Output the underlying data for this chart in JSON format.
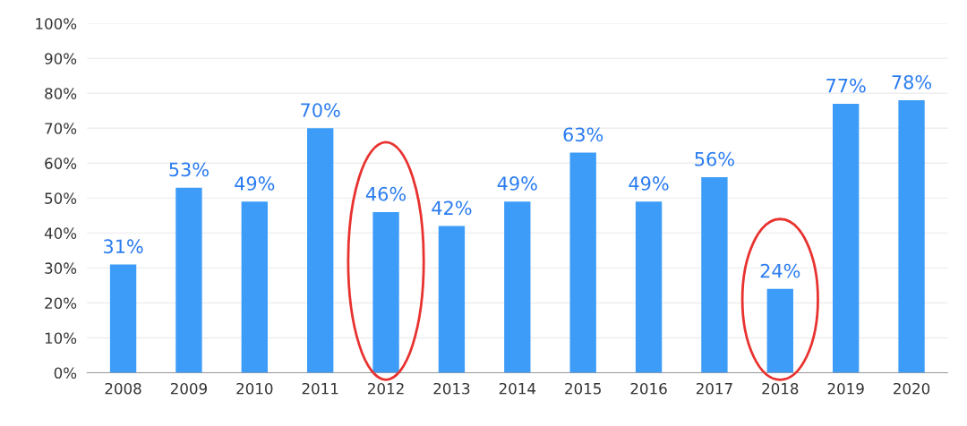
{
  "chart_data": {
    "type": "bar",
    "categories": [
      "2008",
      "2009",
      "2010",
      "2011",
      "2012",
      "2013",
      "2014",
      "2015",
      "2016",
      "2017",
      "2018",
      "2019",
      "2020"
    ],
    "values": [
      31,
      53,
      49,
      70,
      46,
      42,
      49,
      63,
      49,
      56,
      24,
      77,
      78
    ],
    "value_labels": [
      "31%",
      "53%",
      "49%",
      "70%",
      "46%",
      "42%",
      "49%",
      "63%",
      "49%",
      "56%",
      "24%",
      "77%",
      "78%"
    ],
    "color": "#3d9cf8",
    "ylim": [
      0,
      100
    ],
    "yticks": [
      {
        "value": 0,
        "label": "0%"
      },
      {
        "value": 10,
        "label": "10%"
      },
      {
        "value": 20,
        "label": "20%"
      },
      {
        "value": 30,
        "label": "30%"
      },
      {
        "value": 40,
        "label": "40%"
      },
      {
        "value": 50,
        "label": "50%"
      },
      {
        "value": 60,
        "label": "60%"
      },
      {
        "value": 70,
        "label": "70%"
      },
      {
        "value": 80,
        "label": "80%"
      },
      {
        "value": 90,
        "label": "90%"
      },
      {
        "value": 100,
        "label": "100%"
      }
    ],
    "grid": "y"
  }
}
